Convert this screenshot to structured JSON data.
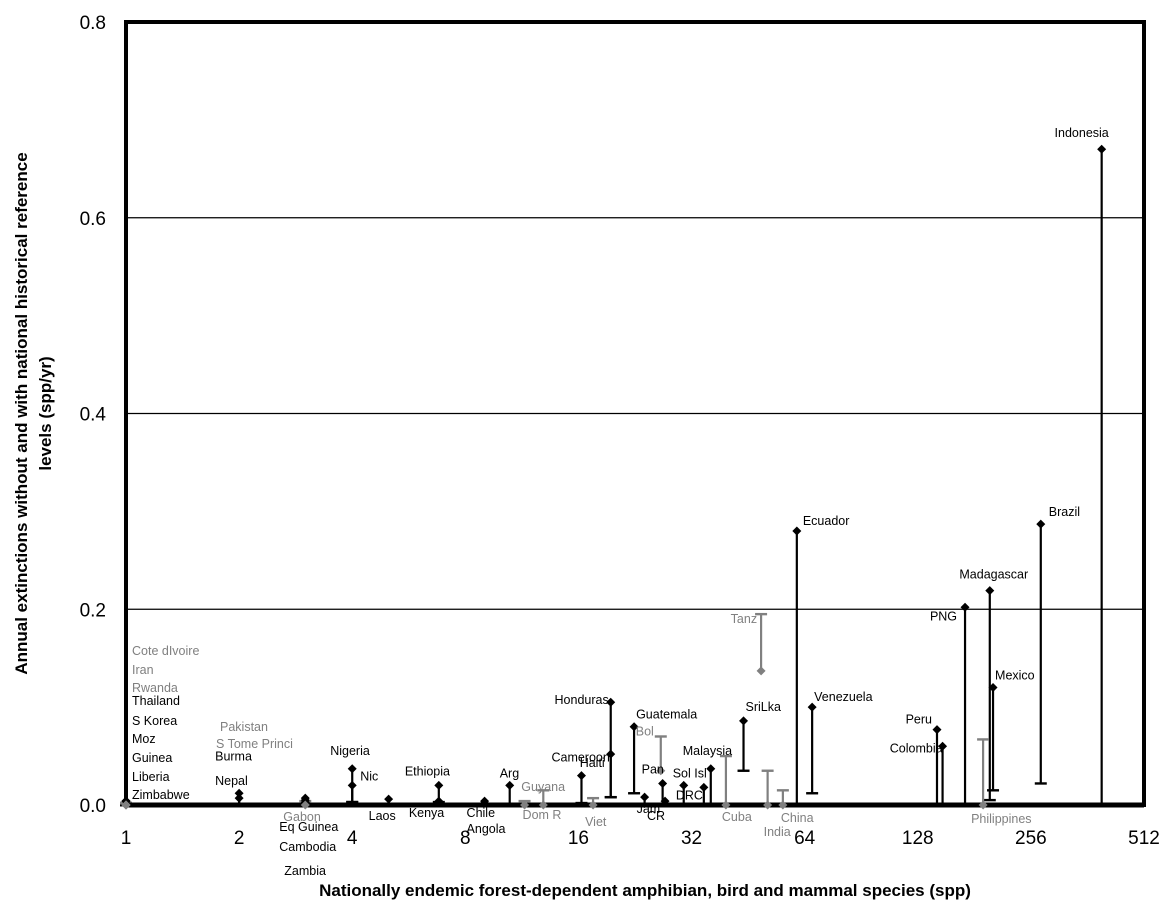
{
  "chart_data": {
    "type": "scatter",
    "title": "",
    "xlabel": "Nationally endemic forest-dependent amphibian, bird and mammal species (spp)",
    "ylabel": "Annual extinctions without and with national historical reference levels (spp/yr)",
    "x_scale": "log2",
    "xlim": [
      1,
      512
    ],
    "ylim": [
      0,
      0.8
    ],
    "x_ticks": [
      1,
      2,
      4,
      8,
      16,
      32,
      64,
      128,
      256,
      512
    ],
    "x_tick_labels": [
      "1",
      "2",
      "4",
      "8",
      "16",
      "32",
      "64",
      "128",
      "256",
      "512"
    ],
    "y_ticks": [
      0,
      0.2,
      0.4,
      0.6,
      0.8
    ],
    "y_tick_labels": [
      "0.0",
      "0.2",
      "0.4",
      "0.6",
      "0.8"
    ],
    "grid": "horizontal",
    "colors": {
      "increase": "#000000",
      "decrease": "#808080"
    },
    "countries": [
      {
        "name": "Indonesia",
        "x": 395,
        "without": 0.67,
        "with": 0.0,
        "color": "black"
      },
      {
        "name": "Brazil",
        "x": 272,
        "without": 0.287,
        "with": 0.022,
        "color": "black"
      },
      {
        "name": "Ecuador",
        "x": 61,
        "without": 0.28,
        "with": 0.0,
        "color": "black"
      },
      {
        "name": "Madagascar",
        "x": 199,
        "without": 0.219,
        "with": 0.005,
        "color": "black"
      },
      {
        "name": "PNG",
        "x": 171,
        "without": 0.202,
        "with": 0.0,
        "color": "black"
      },
      {
        "name": "Mexico",
        "x": 203,
        "without": 0.12,
        "with": 0.015,
        "color": "black"
      },
      {
        "name": "Venezuela",
        "x": 67,
        "without": 0.1,
        "with": 0.012,
        "color": "black"
      },
      {
        "name": "Peru",
        "x": 144,
        "without": 0.077,
        "with": 0.0,
        "color": "black"
      },
      {
        "name": "Colombia",
        "x": 149,
        "without": 0.06,
        "with": 0.0,
        "color": "black"
      },
      {
        "name": "SriLka",
        "x": 44,
        "without": 0.086,
        "with": 0.035,
        "color": "black"
      },
      {
        "name": "Honduras",
        "x": 19.5,
        "without": 0.105,
        "with": 0.008,
        "color": "black"
      },
      {
        "name": "Haiti",
        "x": 19.5,
        "without": 0.052,
        "with": 0.008,
        "color": "black"
      },
      {
        "name": "Guatemala",
        "x": 22.5,
        "without": 0.08,
        "with": 0.012,
        "color": "black"
      },
      {
        "name": "Cameroon",
        "x": 16.3,
        "without": 0.03,
        "with": 0.002,
        "color": "black"
      },
      {
        "name": "Malaysia",
        "x": 36,
        "without": 0.037,
        "with": 0.0,
        "color": "black"
      },
      {
        "name": "DRC",
        "x": 34.5,
        "without": 0.018,
        "with": 0.0,
        "color": "black"
      },
      {
        "name": "Sol Isl",
        "x": 30.5,
        "without": 0.02,
        "with": 0.0,
        "color": "black"
      },
      {
        "name": "Pan",
        "x": 26.8,
        "without": 0.022,
        "with": 0.0,
        "color": "black"
      },
      {
        "name": "Jam",
        "x": 24,
        "without": 0.008,
        "with": 0.0,
        "color": "black"
      },
      {
        "name": "CR",
        "x": 27.2,
        "without": 0.004,
        "with": 0.0,
        "color": "black"
      },
      {
        "name": "Arg",
        "x": 10.5,
        "without": 0.02,
        "with": 0.0,
        "color": "black"
      },
      {
        "name": "Ethiopia",
        "x": 6.8,
        "without": 0.02,
        "with": 0.003,
        "color": "black"
      },
      {
        "name": "Kenya",
        "x": 6.8,
        "without": 0.004,
        "with": 0.0,
        "color": "black"
      },
      {
        "name": "Chile",
        "x": 9.0,
        "without": 0.004,
        "with": 0.0,
        "color": "black"
      },
      {
        "name": "Angola",
        "x": 9.0,
        "without": 0.002,
        "with": 0.0,
        "color": "black"
      },
      {
        "name": "Laos",
        "x": 5.0,
        "without": 0.006,
        "with": 0.0,
        "color": "black"
      },
      {
        "name": "Nigeria",
        "x": 4.0,
        "without": 0.037,
        "with": 0.003,
        "color": "black"
      },
      {
        "name": "Nic",
        "x": 4.0,
        "without": 0.02,
        "with": 0.003,
        "color": "black"
      },
      {
        "name": "Burma",
        "x": 2.0,
        "without": 0.012,
        "with": 0.0,
        "color": "black"
      },
      {
        "name": "Nepal",
        "x": 2.0,
        "without": 0.007,
        "with": 0.0,
        "color": "black"
      },
      {
        "name": "Eq Guinea",
        "x": 3.0,
        "without": 0.007,
        "with": 0.0,
        "color": "black"
      },
      {
        "name": "Cambodia",
        "x": 3.0,
        "without": 0.005,
        "with": 0.0,
        "color": "black"
      },
      {
        "name": "Zambia",
        "x": 3.0,
        "without": 0.003,
        "with": 0.0,
        "color": "black"
      },
      {
        "name": "Thailand",
        "x": 1.0,
        "without": 0.004,
        "with": 0.0,
        "color": "black"
      },
      {
        "name": "S Korea",
        "x": 1.0,
        "without": 0.004,
        "with": 0.0,
        "color": "black"
      },
      {
        "name": "Moz",
        "x": 1.0,
        "without": 0.004,
        "with": 0.0,
        "color": "black"
      },
      {
        "name": "Guinea",
        "x": 1.0,
        "without": 0.004,
        "with": 0.0,
        "color": "black"
      },
      {
        "name": "Liberia",
        "x": 1.0,
        "without": 0.004,
        "with": 0.0,
        "color": "black"
      },
      {
        "name": "Zimbabwe",
        "x": 1.0,
        "without": 0.004,
        "with": 0.0,
        "color": "black"
      },
      {
        "name": "Tanz",
        "x": 49,
        "without": 0.137,
        "with": 0.195,
        "color": "gray"
      },
      {
        "name": "Philippines",
        "x": 191,
        "without": 0.0,
        "with": 0.067,
        "color": "gray"
      },
      {
        "name": "Bol",
        "x": 26.5,
        "without": 0.035,
        "with": 0.07,
        "color": "gray"
      },
      {
        "name": "India",
        "x": 51,
        "without": 0.0,
        "with": 0.035,
        "color": "gray"
      },
      {
        "name": "China",
        "x": 56,
        "without": 0.0,
        "with": 0.015,
        "color": "gray"
      },
      {
        "name": "Guyana",
        "x": 12.9,
        "without": 0.0,
        "with": 0.015,
        "color": "gray"
      },
      {
        "name": "Cuba",
        "x": 39.5,
        "without": 0.0,
        "with": 0.05,
        "color": "gray"
      },
      {
        "name": "Viet",
        "x": 17.5,
        "without": 0.0,
        "with": 0.007,
        "color": "gray"
      },
      {
        "name": "Dom R",
        "x": 11.5,
        "without": 0.0,
        "with": 0.004,
        "color": "gray"
      },
      {
        "name": "Gabon",
        "x": 3.0,
        "without": 0.0,
        "with": 0.004,
        "color": "gray"
      },
      {
        "name": "Pakistan",
        "x": 1.0,
        "without": 0.0,
        "with": 0.002,
        "color": "gray"
      },
      {
        "name": "S Tome Princi",
        "x": 1.0,
        "without": 0.0,
        "with": 0.002,
        "color": "gray"
      },
      {
        "name": "Cote dIvoire",
        "x": 1.0,
        "without": 0.0,
        "with": 0.002,
        "color": "gray"
      },
      {
        "name": "Iran",
        "x": 1.0,
        "without": 0.0,
        "with": 0.002,
        "color": "gray"
      },
      {
        "name": "Rwanda",
        "x": 1.0,
        "without": 0.0,
        "with": 0.002,
        "color": "gray"
      }
    ]
  }
}
